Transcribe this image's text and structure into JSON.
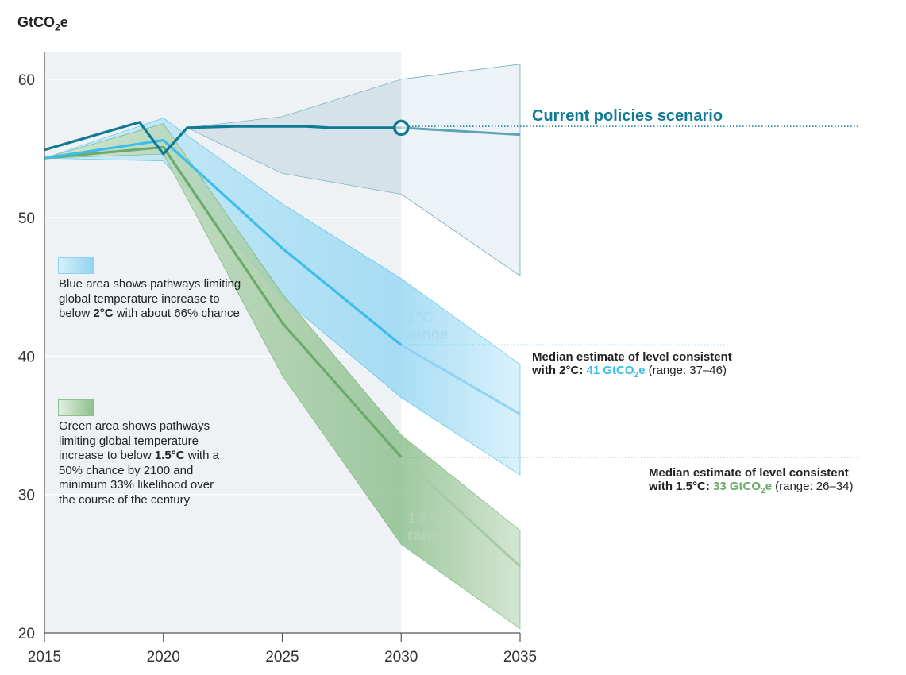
{
  "chart_data": {
    "type": "area",
    "title": "",
    "unit_label": {
      "prefix": "GtCO",
      "subscript": "2",
      "suffix": "e"
    },
    "xlim": [
      2015,
      2035
    ],
    "ylim": [
      20,
      62
    ],
    "x_ticks": [
      2015,
      2020,
      2025,
      2030,
      2035
    ],
    "y_ticks": [
      20,
      30,
      40,
      50,
      60
    ],
    "shaded_period": [
      2015,
      2030
    ],
    "series": [
      {
        "name": "Current policies scenario",
        "color": "#0f7a94",
        "points": [
          [
            2015,
            54.9
          ],
          [
            2019,
            56.9
          ],
          [
            2020,
            54.6
          ],
          [
            2021,
            56.5
          ],
          [
            2023,
            56.6
          ],
          [
            2026,
            56.6
          ],
          [
            2027,
            56.5
          ],
          [
            2030,
            56.5
          ]
        ],
        "projection": [
          [
            2030,
            56.5
          ],
          [
            2035,
            56.0
          ]
        ],
        "range_upper": [
          [
            2021,
            56.5
          ],
          [
            2025,
            57.3
          ],
          [
            2030,
            60.0
          ],
          [
            2035,
            61.1
          ]
        ],
        "range_lower": [
          [
            2021,
            56.5
          ],
          [
            2025,
            53.2
          ],
          [
            2030,
            51.7
          ],
          [
            2035,
            45.8
          ]
        ],
        "inner_range_until": 2030,
        "marker_at": [
          2030,
          56.5
        ]
      },
      {
        "name": "2°C range",
        "color": "#3dbde9",
        "points": [
          [
            2015,
            54.3
          ],
          [
            2020,
            55.6
          ],
          [
            2025,
            47.8
          ],
          [
            2030,
            40.8
          ]
        ],
        "projection": [
          [
            2030,
            40.8
          ],
          [
            2035,
            35.8
          ]
        ],
        "range_upper": [
          [
            2015,
            54.3
          ],
          [
            2020,
            57.2
          ],
          [
            2025,
            51.0
          ],
          [
            2030,
            45.6
          ],
          [
            2035,
            39.4
          ]
        ],
        "range_lower": [
          [
            2015,
            54.3
          ],
          [
            2020,
            54.1
          ],
          [
            2025,
            44.2
          ],
          [
            2030,
            37.0
          ],
          [
            2035,
            31.4
          ]
        ],
        "median_2030": 41
      },
      {
        "name": "1.5°C range",
        "color": "#6aaa6b",
        "points": [
          [
            2015,
            54.3
          ],
          [
            2020,
            55.1
          ],
          [
            2025,
            42.4
          ],
          [
            2030,
            32.7
          ]
        ],
        "projection": [
          [
            2030,
            32.7
          ],
          [
            2035,
            24.8
          ]
        ],
        "range_upper": [
          [
            2015,
            54.3
          ],
          [
            2020,
            56.8
          ],
          [
            2025,
            44.5
          ],
          [
            2030,
            34.3
          ],
          [
            2035,
            27.4
          ]
        ],
        "range_lower": [
          [
            2015,
            54.3
          ],
          [
            2020,
            54.6
          ],
          [
            2025,
            38.6
          ],
          [
            2030,
            26.4
          ],
          [
            2035,
            20.3
          ]
        ],
        "median_2030": 33
      }
    ],
    "reference_lines": [
      {
        "y": 56.6,
        "series": "Current policies scenario"
      },
      {
        "y": 40.8,
        "series": "2°C range"
      },
      {
        "y": 32.7,
        "series": "1.5°C range"
      }
    ]
  },
  "labels": {
    "current_policies": "Current policies scenario",
    "range_2c_line1": "2°C",
    "range_2c_line2": "range",
    "range_15c_line1": "1.5°C",
    "range_15c_line2": "range"
  },
  "legend": {
    "blue": {
      "text_before": "Blue area shows pathways limiting global temperature increase to below ",
      "bold": "2°C",
      "text_after": " with about 66% chance"
    },
    "green": {
      "text_before": "Green area shows pathways limiting global temperature increase to below ",
      "bold": "1.5°C",
      "text_after": " with a 50% chance by 2100 and minimum 33% likelihood over the course of the century"
    }
  },
  "median_notes": {
    "two_c": {
      "line1": "Median estimate of level consistent",
      "line2_prefix": "with 2°C: ",
      "value": "41 GtCO",
      "value_sub": "2",
      "value_suffix": "e",
      "range": " (range: 37–46)"
    },
    "one_five_c": {
      "line1": "Median estimate of level consistent",
      "line2_prefix": "with 1.5°C: ",
      "value": "33 GtCO",
      "value_sub": "2",
      "value_suffix": "e",
      "range": " (range: 26–34)"
    }
  },
  "colors": {
    "current": "#0f7a94",
    "blue": "#3dbde9",
    "blue_light": "#a7dcf1",
    "green": "#6aaa6b",
    "green_light": "#b5d3b4",
    "shade": "#eef2f5"
  }
}
